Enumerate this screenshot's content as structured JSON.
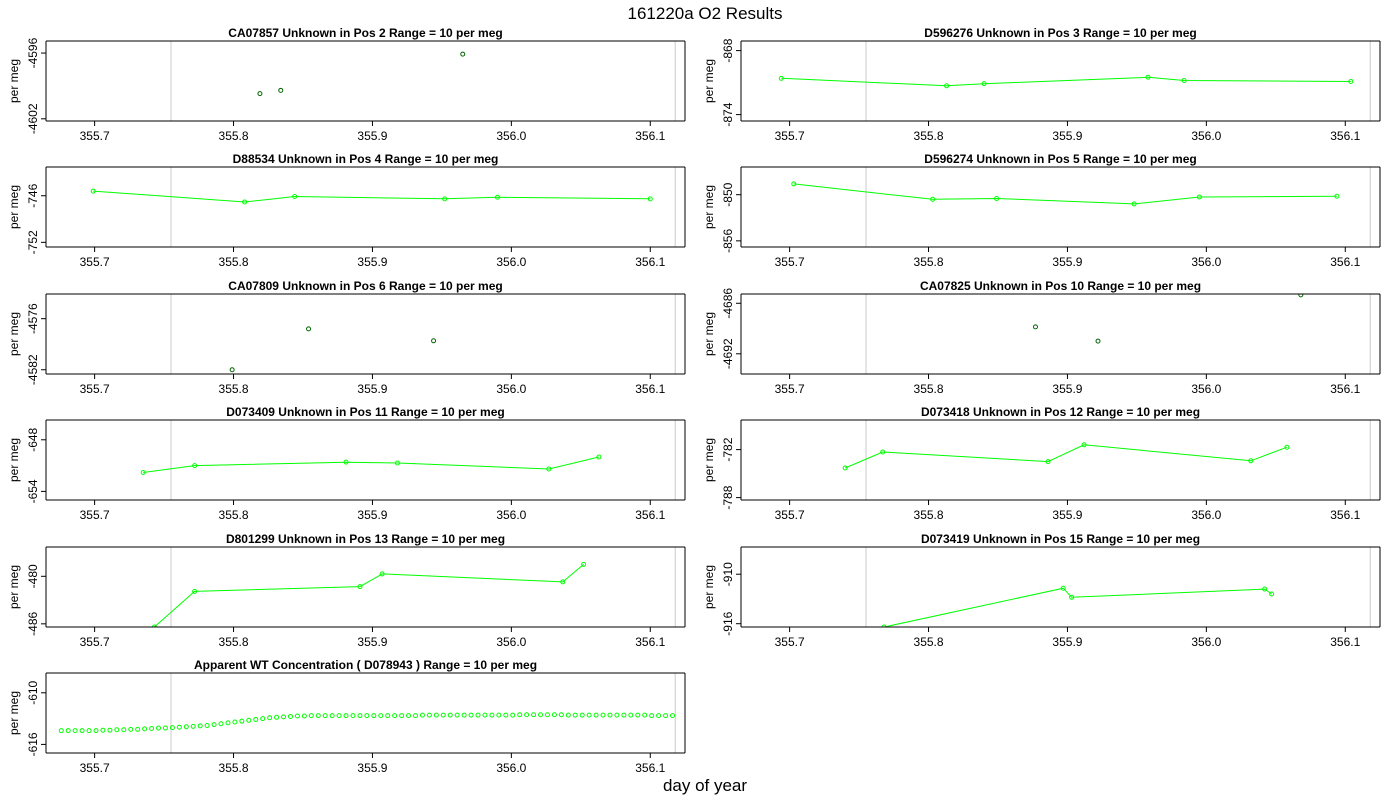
{
  "figure": {
    "title": "161220a  O2 Results",
    "xlabel": "day of year"
  },
  "chart_data": [
    {
      "type": "scatter",
      "title": "CA07857    Unknown in Pos 2          Range = 10 per meg",
      "ylabel": "per meg",
      "xlim": [
        355.665,
        356.125
      ],
      "ylim": [
        -4602.2,
        -4594.9
      ],
      "xticks": [
        "355.7",
        "355.8",
        "355.9",
        "356.0",
        "356.1"
      ],
      "yticks": [
        "-4596",
        "-4602"
      ],
      "vlines": [
        355.755,
        356.118
      ],
      "connect": false,
      "color": "#006400",
      "x": [
        355.819,
        355.834,
        355.965
      ],
      "y": [
        -4599.7,
        -4599.4,
        -4596.1
      ]
    },
    {
      "type": "line",
      "title": "D596276    Unknown in Pos 3          Range = 10 per meg",
      "ylabel": "per meg",
      "xlim": [
        355.665,
        356.125
      ],
      "ylim": [
        -874.6,
        -867.1
      ],
      "xticks": [
        "355.7",
        "355.8",
        "355.9",
        "356.0",
        "356.1"
      ],
      "yticks": [
        "-868",
        "-874"
      ],
      "vlines": [
        355.755,
        356.118
      ],
      "connect": true,
      "color": "#00ff00",
      "x": [
        355.694,
        355.813,
        355.84,
        355.958,
        355.984,
        356.104
      ],
      "y": [
        -870.6,
        -871.3,
        -871.1,
        -870.5,
        -870.8,
        -870.9
      ]
    },
    {
      "type": "line",
      "title": "D88534    Unknown in Pos 4          Range = 10 per meg",
      "ylabel": "per meg",
      "xlim": [
        355.665,
        356.125
      ],
      "ylim": [
        -752.6,
        -742.3
      ],
      "xticks": [
        "355.7",
        "355.8",
        "355.9",
        "356.0",
        "356.1"
      ],
      "yticks": [
        "-746",
        "-752"
      ],
      "vlines": [
        355.755,
        356.118
      ],
      "connect": true,
      "color": "#00ff00",
      "x": [
        355.699,
        355.808,
        355.844,
        355.952,
        355.99,
        356.1
      ],
      "y": [
        -745.4,
        -746.8,
        -746.1,
        -746.4,
        -746.2,
        -746.4
      ]
    },
    {
      "type": "line",
      "title": "D596274    Unknown in Pos 5          Range = 10 per meg",
      "ylabel": "per meg",
      "xlim": [
        355.665,
        356.125
      ],
      "ylim": [
        -856.8,
        -846.4
      ],
      "xticks": [
        "355.7",
        "355.8",
        "355.9",
        "356.0",
        "356.1"
      ],
      "yticks": [
        "-850",
        "-856"
      ],
      "vlines": [
        355.755,
        356.118
      ],
      "connect": true,
      "color": "#00ff00",
      "x": [
        355.703,
        355.803,
        355.849,
        355.948,
        355.995,
        356.094
      ],
      "y": [
        -848.6,
        -850.6,
        -850.5,
        -851.2,
        -850.3,
        -850.2
      ]
    },
    {
      "type": "scatter",
      "title": "CA07809    Unknown in Pos 6          Range = 10 per meg",
      "ylabel": "per meg",
      "xlim": [
        355.665,
        356.125
      ],
      "ylim": [
        -4582.5,
        -4573.1
      ],
      "xticks": [
        "355.7",
        "355.8",
        "355.9",
        "356.0",
        "356.1"
      ],
      "yticks": [
        "-4576",
        "-4582"
      ],
      "vlines": [
        355.755,
        356.118
      ],
      "connect": false,
      "color": "#006400",
      "x": [
        355.799,
        355.854,
        355.944
      ],
      "y": [
        -4582.0,
        -4577.2,
        -4578.6
      ]
    },
    {
      "type": "scatter",
      "title": "CA07825    Unknown in Pos 10          Range = 10 per meg",
      "ylabel": "per meg",
      "xlim": [
        355.665,
        356.125
      ],
      "ylim": [
        -4694.4,
        -4684.9
      ],
      "xticks": [
        "355.7",
        "355.8",
        "355.9",
        "356.0",
        "356.1"
      ],
      "yticks": [
        "-4686",
        "-4692"
      ],
      "vlines": [
        355.755,
        356.118
      ],
      "connect": false,
      "color": "#006400",
      "x": [
        355.877,
        355.922,
        356.068
      ],
      "y": [
        -4688.8,
        -4690.5,
        -4685.0
      ]
    },
    {
      "type": "line",
      "title": "D073409    Unknown in Pos 11          Range = 10 per meg",
      "ylabel": "per meg",
      "xlim": [
        355.665,
        356.125
      ],
      "ylim": [
        -655.0,
        -645.7
      ],
      "xticks": [
        "355.7",
        "355.8",
        "355.9",
        "356.0",
        "356.1"
      ],
      "yticks": [
        "-648",
        "-654"
      ],
      "vlines": [
        355.755,
        356.118
      ],
      "connect": true,
      "color": "#00ff00",
      "x": [
        355.735,
        355.772,
        355.881,
        355.918,
        356.027,
        356.063
      ],
      "y": [
        -651.8,
        -651.0,
        -650.6,
        -650.7,
        -651.4,
        -650.0
      ]
    },
    {
      "type": "line",
      "title": "D073418    Unknown in Pos 12          Range = 10 per meg",
      "ylabel": "per meg",
      "xlim": [
        355.665,
        356.125
      ],
      "ylim": [
        -788.3,
        -778.3
      ],
      "xticks": [
        "355.7",
        "355.8",
        "355.9",
        "356.0",
        "356.1"
      ],
      "yticks": [
        "-782",
        "-788"
      ],
      "vlines": [
        355.755,
        356.118
      ],
      "connect": true,
      "color": "#00ff00",
      "x": [
        355.74,
        355.767,
        355.886,
        355.912,
        356.032,
        356.058
      ],
      "y": [
        -784.3,
        -782.3,
        -783.5,
        -781.4,
        -783.4,
        -781.7
      ]
    },
    {
      "type": "line",
      "title": "D801299    Unknown in Pos 13          Range = 10 per meg",
      "ylabel": "per meg",
      "xlim": [
        355.665,
        356.125
      ],
      "ylim": [
        -486.4,
        -476.3
      ],
      "xticks": [
        "355.7",
        "355.8",
        "355.9",
        "356.0",
        "356.1"
      ],
      "yticks": [
        "-480",
        "-486"
      ],
      "vlines": [
        355.755,
        356.118
      ],
      "connect": true,
      "color": "#00ff00",
      "x": [
        355.743,
        355.772,
        355.891,
        355.907,
        356.037,
        356.052
      ],
      "y": [
        -486.4,
        -481.9,
        -481.3,
        -479.7,
        -480.7,
        -478.5
      ]
    },
    {
      "type": "line",
      "title": "D073419    Unknown in Pos 15          Range = 10 per meg",
      "ylabel": "per meg",
      "xlim": [
        355.665,
        356.125
      ],
      "ylim": [
        -916.4,
        -906.7
      ],
      "xticks": [
        "355.7",
        "355.8",
        "355.9",
        "356.0",
        "356.1"
      ],
      "yticks": [
        "-910",
        "-916"
      ],
      "vlines": [
        355.755,
        356.118
      ],
      "connect": true,
      "color": "#00ff00",
      "x": [
        355.768,
        355.897,
        355.903,
        356.042,
        356.047
      ],
      "y": [
        -916.4,
        -911.7,
        -912.8,
        -911.8,
        -912.4
      ]
    },
    {
      "type": "scatter",
      "title": "Apparent WT Concentration ( D078943 )          Range = 10 per meg",
      "ylabel": "per meg",
      "xlim": [
        355.665,
        356.125
      ],
      "ylim": [
        -617.0,
        -607.7
      ],
      "xticks": [
        "355.7",
        "355.8",
        "355.9",
        "356.0",
        "356.1"
      ],
      "yticks": [
        "-610",
        "-616"
      ],
      "vlines": [
        355.755,
        356.118
      ],
      "connect": false,
      "color": "#00ff00",
      "x": [
        355.676,
        355.681,
        355.686,
        355.691,
        355.696,
        355.701,
        355.706,
        355.711,
        355.716,
        355.721,
        355.726,
        355.731,
        355.736,
        355.741,
        355.746,
        355.751,
        355.756,
        355.761,
        355.766,
        355.771,
        355.776,
        355.781,
        355.786,
        355.791,
        355.796,
        355.801,
        355.806,
        355.811,
        355.816,
        355.821,
        355.826,
        355.831,
        355.836,
        355.841,
        355.846,
        355.851,
        355.856,
        355.861,
        355.866,
        355.871,
        355.876,
        355.881,
        355.886,
        355.891,
        355.896,
        355.901,
        355.906,
        355.911,
        355.916,
        355.921,
        355.926,
        355.931,
        355.936,
        355.941,
        355.946,
        355.951,
        355.956,
        355.961,
        355.966,
        355.971,
        355.976,
        355.981,
        355.986,
        355.991,
        355.996,
        356.001,
        356.006,
        356.011,
        356.016,
        356.021,
        356.026,
        356.031,
        356.036,
        356.041,
        356.046,
        356.051,
        356.056,
        356.061,
        356.066,
        356.071,
        356.076,
        356.081,
        356.086,
        356.091,
        356.096,
        356.101,
        356.106,
        356.111,
        356.116
      ],
      "y": [
        -614.4,
        -614.4,
        -614.4,
        -614.4,
        -614.4,
        -614.4,
        -614.35,
        -614.35,
        -614.3,
        -614.3,
        -614.25,
        -614.25,
        -614.2,
        -614.15,
        -614.1,
        -614.1,
        -614.05,
        -614.0,
        -613.95,
        -613.9,
        -613.85,
        -613.8,
        -613.7,
        -613.6,
        -613.5,
        -613.4,
        -613.3,
        -613.2,
        -613.1,
        -613.0,
        -612.9,
        -612.85,
        -612.8,
        -612.75,
        -612.7,
        -612.7,
        -612.65,
        -612.65,
        -612.65,
        -612.65,
        -612.65,
        -612.65,
        -612.65,
        -612.65,
        -612.65,
        -612.65,
        -612.65,
        -612.65,
        -612.65,
        -612.65,
        -612.65,
        -612.65,
        -612.6,
        -612.6,
        -612.6,
        -612.6,
        -612.6,
        -612.6,
        -612.6,
        -612.6,
        -612.6,
        -612.6,
        -612.6,
        -612.6,
        -612.6,
        -612.6,
        -612.55,
        -612.55,
        -612.55,
        -612.55,
        -612.55,
        -612.55,
        -612.55,
        -612.6,
        -612.6,
        -612.6,
        -612.6,
        -612.6,
        -612.6,
        -612.6,
        -612.6,
        -612.6,
        -612.6,
        -612.6,
        -612.6,
        -612.65,
        -612.65,
        -612.65,
        -612.65
      ]
    }
  ]
}
